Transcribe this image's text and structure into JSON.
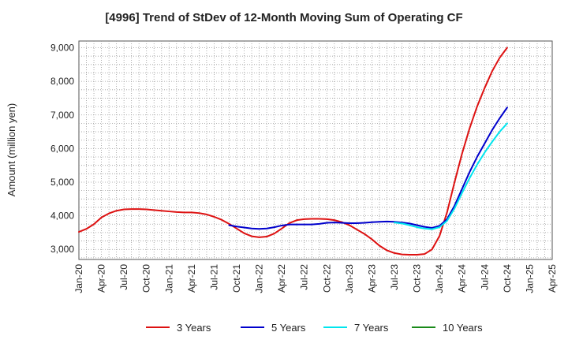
{
  "chart_data": {
    "type": "line",
    "title": "[4996]  Trend of StDev of 12-Month Moving Sum of Operating CF",
    "xlabel": "",
    "ylabel": "Amount (million yen)",
    "x_ticks": [
      "Jan-20",
      "Apr-20",
      "Jul-20",
      "Oct-20",
      "Jan-21",
      "Apr-21",
      "Jul-21",
      "Oct-21",
      "Jan-22",
      "Apr-22",
      "Jul-22",
      "Oct-22",
      "Jan-23",
      "Apr-23",
      "Jul-23",
      "Oct-23",
      "Jan-24",
      "Apr-24",
      "Jul-24",
      "Oct-24",
      "Jan-25",
      "Apr-25"
    ],
    "x_range": [
      "2020-01",
      "2025-04"
    ],
    "y_ticks": [
      3000,
      4000,
      5000,
      6000,
      7000,
      8000,
      9000
    ],
    "y_tick_labels": [
      "3,000",
      "4,000",
      "5,000",
      "6,000",
      "7,000",
      "8,000",
      "9,000"
    ],
    "ylim": [
      2700,
      9200
    ],
    "grid": true,
    "legend_position": "bottom",
    "series": [
      {
        "name": "3 Years",
        "color": "#dd1111",
        "points": [
          [
            "2020-01",
            3520
          ],
          [
            "2020-02",
            3610
          ],
          [
            "2020-03",
            3750
          ],
          [
            "2020-04",
            3950
          ],
          [
            "2020-05",
            4070
          ],
          [
            "2020-06",
            4150
          ],
          [
            "2020-07",
            4190
          ],
          [
            "2020-08",
            4200
          ],
          [
            "2020-09",
            4200
          ],
          [
            "2020-10",
            4190
          ],
          [
            "2020-11",
            4170
          ],
          [
            "2020-12",
            4150
          ],
          [
            "2021-01",
            4130
          ],
          [
            "2021-02",
            4110
          ],
          [
            "2021-03",
            4100
          ],
          [
            "2021-04",
            4100
          ],
          [
            "2021-05",
            4080
          ],
          [
            "2021-06",
            4040
          ],
          [
            "2021-07",
            3970
          ],
          [
            "2021-08",
            3880
          ],
          [
            "2021-09",
            3760
          ],
          [
            "2021-10",
            3620
          ],
          [
            "2021-11",
            3480
          ],
          [
            "2021-12",
            3390
          ],
          [
            "2022-01",
            3360
          ],
          [
            "2022-02",
            3380
          ],
          [
            "2022-03",
            3470
          ],
          [
            "2022-04",
            3620
          ],
          [
            "2022-05",
            3780
          ],
          [
            "2022-06",
            3870
          ],
          [
            "2022-07",
            3900
          ],
          [
            "2022-08",
            3910
          ],
          [
            "2022-09",
            3910
          ],
          [
            "2022-10",
            3900
          ],
          [
            "2022-11",
            3870
          ],
          [
            "2022-12",
            3810
          ],
          [
            "2023-01",
            3720
          ],
          [
            "2023-02",
            3590
          ],
          [
            "2023-03",
            3460
          ],
          [
            "2023-04",
            3300
          ],
          [
            "2023-05",
            3110
          ],
          [
            "2023-06",
            2970
          ],
          [
            "2023-07",
            2890
          ],
          [
            "2023-08",
            2850
          ],
          [
            "2023-09",
            2840
          ],
          [
            "2023-10",
            2840
          ],
          [
            "2023-11",
            2860
          ],
          [
            "2023-12",
            3000
          ],
          [
            "2024-01",
            3400
          ],
          [
            "2024-02",
            4100
          ],
          [
            "2024-03",
            5000
          ],
          [
            "2024-04",
            5850
          ],
          [
            "2024-05",
            6600
          ],
          [
            "2024-06",
            7250
          ],
          [
            "2024-07",
            7800
          ],
          [
            "2024-08",
            8300
          ],
          [
            "2024-09",
            8700
          ],
          [
            "2024-10",
            9000
          ]
        ]
      },
      {
        "name": "5 Years",
        "color": "#0000cc",
        "points": [
          [
            "2021-09",
            3720
          ],
          [
            "2021-10",
            3680
          ],
          [
            "2021-11",
            3650
          ],
          [
            "2021-12",
            3620
          ],
          [
            "2022-01",
            3610
          ],
          [
            "2022-02",
            3620
          ],
          [
            "2022-03",
            3660
          ],
          [
            "2022-04",
            3710
          ],
          [
            "2022-05",
            3740
          ],
          [
            "2022-06",
            3740
          ],
          [
            "2022-07",
            3740
          ],
          [
            "2022-08",
            3740
          ],
          [
            "2022-09",
            3760
          ],
          [
            "2022-10",
            3790
          ],
          [
            "2022-11",
            3800
          ],
          [
            "2022-12",
            3790
          ],
          [
            "2023-01",
            3780
          ],
          [
            "2023-02",
            3780
          ],
          [
            "2023-03",
            3790
          ],
          [
            "2023-04",
            3810
          ],
          [
            "2023-05",
            3820
          ],
          [
            "2023-06",
            3830
          ],
          [
            "2023-07",
            3820
          ],
          [
            "2023-08",
            3800
          ],
          [
            "2023-09",
            3770
          ],
          [
            "2023-10",
            3720
          ],
          [
            "2023-11",
            3670
          ],
          [
            "2023-12",
            3640
          ],
          [
            "2024-01",
            3700
          ],
          [
            "2024-02",
            3900
          ],
          [
            "2024-03",
            4300
          ],
          [
            "2024-04",
            4800
          ],
          [
            "2024-05",
            5300
          ],
          [
            "2024-06",
            5750
          ],
          [
            "2024-07",
            6150
          ],
          [
            "2024-08",
            6550
          ],
          [
            "2024-09",
            6900
          ],
          [
            "2024-10",
            7220
          ]
        ]
      },
      {
        "name": "7 Years",
        "color": "#00e5ee",
        "points": [
          [
            "2023-07",
            3800
          ],
          [
            "2023-08",
            3770
          ],
          [
            "2023-09",
            3720
          ],
          [
            "2023-10",
            3660
          ],
          [
            "2023-11",
            3620
          ],
          [
            "2023-12",
            3600
          ],
          [
            "2024-01",
            3660
          ],
          [
            "2024-02",
            3850
          ],
          [
            "2024-03",
            4220
          ],
          [
            "2024-04",
            4680
          ],
          [
            "2024-05",
            5120
          ],
          [
            "2024-06",
            5520
          ],
          [
            "2024-07",
            5880
          ],
          [
            "2024-08",
            6200
          ],
          [
            "2024-09",
            6500
          ],
          [
            "2024-10",
            6750
          ]
        ]
      },
      {
        "name": "10 Years",
        "color": "#1a8a1a",
        "points": []
      }
    ]
  }
}
